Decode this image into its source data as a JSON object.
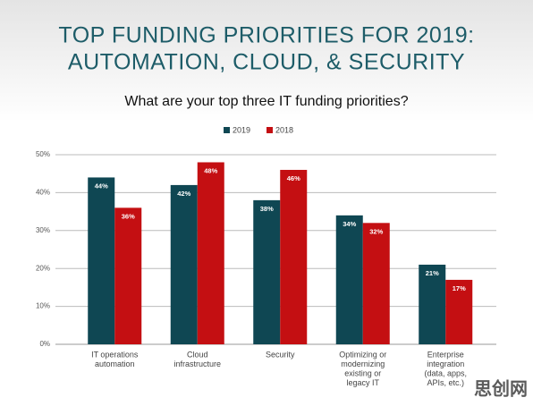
{
  "chart_data": {
    "type": "bar",
    "title_lines": [
      "TOP FUNDING PRIORITIES FOR 2019:",
      "AUTOMATION, CLOUD, & SECURITY"
    ],
    "subtitle": "What are your top three IT funding priorities?",
    "categories": [
      [
        "IT operations",
        "automation"
      ],
      [
        "Cloud",
        "infrastructure"
      ],
      [
        "Security"
      ],
      [
        "Optimizing or",
        "modernizing",
        "existing or",
        "legacy IT"
      ],
      [
        "Enterprise",
        "integration",
        "(data, apps,",
        "APIs, etc.)"
      ]
    ],
    "series": [
      {
        "name": "2019",
        "color": "#0f4753",
        "values": [
          44,
          42,
          38,
          34,
          21
        ],
        "value_labels": [
          "44%",
          "42%",
          "38%",
          "34%",
          "21%"
        ]
      },
      {
        "name": "2018",
        "color": "#c40f12",
        "values": [
          36,
          48,
          46,
          32,
          17
        ],
        "value_labels": [
          "36%",
          "48%",
          "46%",
          "32%",
          "17%"
        ]
      }
    ],
    "ylim": [
      0,
      50
    ],
    "yticks": [
      {
        "value": 0,
        "label": "0%"
      },
      {
        "value": 10,
        "label": "10%"
      },
      {
        "value": 20,
        "label": "20%"
      },
      {
        "value": 30,
        "label": "30%"
      },
      {
        "value": 40,
        "label": "40%"
      },
      {
        "value": 50,
        "label": "50%"
      }
    ],
    "grid": true,
    "legend": "top",
    "watermark": "思创网"
  }
}
